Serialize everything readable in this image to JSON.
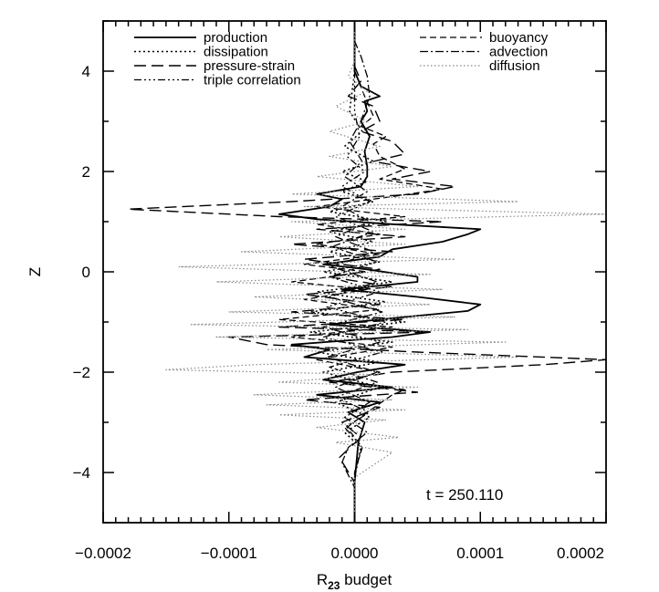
{
  "chart_data": {
    "type": "line",
    "xlabel_main": "R",
    "xlabel_sub": "23",
    "xlabel_rest": " budget",
    "ylabel": "Z",
    "xlim": [
      -0.0002,
      0.0002
    ],
    "ylim": [
      -5,
      5
    ],
    "x_ticks": [
      -0.0002,
      -0.0001,
      0.0,
      0.0001,
      0.0002
    ],
    "x_tick_labels": [
      "−0.0002",
      "−0.0001",
      "0.0000",
      "0.0001",
      "0.0002"
    ],
    "y_ticks": [
      -4,
      -2,
      0,
      2,
      4
    ],
    "y_tick_labels": [
      "−4",
      "−2",
      "0",
      "2",
      "4"
    ],
    "annotation": "t = 250.110",
    "grid": false,
    "legend_placement": "top",
    "series": [
      {
        "name": "production",
        "dash": "",
        "width": 1.8,
        "color": "#000000",
        "points": [
          [
            0,
            -5
          ],
          [
            0,
            -4.2
          ],
          [
            3e-06,
            -3.4
          ],
          [
            8e-06,
            -3.0
          ],
          [
            -5e-06,
            -2.8
          ],
          [
            2e-05,
            -2.6
          ],
          [
            -3e-05,
            -2.45
          ],
          [
            3e-05,
            -2.3
          ],
          [
            -2.5e-05,
            -2.15
          ],
          [
            2e-06,
            -2.0
          ],
          [
            4e-05,
            -1.85
          ],
          [
            -4e-05,
            -1.7
          ],
          [
            -2e-05,
            -1.55
          ],
          [
            -5e-05,
            -1.45
          ],
          [
            3e-05,
            -1.3
          ],
          [
            6e-05,
            -1.2
          ],
          [
            -2e-05,
            -1.05
          ],
          [
            4e-05,
            -0.9
          ],
          [
            9e-05,
            -0.78
          ],
          [
            0.0001,
            -0.65
          ],
          [
            5e-05,
            -0.5
          ],
          [
            -1e-05,
            -0.35
          ],
          [
            5e-05,
            -0.2
          ],
          [
            5e-05,
            -0.1
          ],
          [
            1e-05,
            0.05
          ],
          [
            -2.5e-05,
            0.15
          ],
          [
            2e-05,
            0.3
          ],
          [
            3e-05,
            0.45
          ],
          [
            7e-05,
            0.6
          ],
          [
            9e-05,
            0.75
          ],
          [
            0.0001,
            0.85
          ],
          [
            3e-05,
            0.95
          ],
          [
            -3e-05,
            1.05
          ],
          [
            -6e-05,
            1.15
          ],
          [
            -2e-05,
            1.3
          ],
          [
            -1e-05,
            1.45
          ],
          [
            -3e-05,
            1.55
          ],
          [
            5e-06,
            1.7
          ],
          [
            1e-05,
            1.9
          ],
          [
            1e-05,
            2.1
          ],
          [
            8e-06,
            2.4
          ],
          [
            1.2e-05,
            2.7
          ],
          [
            5e-06,
            3.0
          ],
          [
            1e-05,
            3.2
          ],
          [
            8e-06,
            3.4
          ],
          [
            2e-05,
            3.5
          ],
          [
            5e-06,
            3.7
          ],
          [
            0,
            4.0
          ],
          [
            0,
            5
          ]
        ]
      },
      {
        "name": "dissipation",
        "dash": "2,3",
        "width": 1.6,
        "color": "#000000",
        "points": [
          [
            0,
            -5
          ],
          [
            0,
            -4.1
          ],
          [
            5e-06,
            -3.5
          ],
          [
            -8e-06,
            -3.2
          ],
          [
            1.2e-05,
            -2.9
          ],
          [
            -1.5e-05,
            -2.6
          ],
          [
            2e-05,
            -2.3
          ],
          [
            -2.5e-05,
            -2.0
          ],
          [
            2e-05,
            -1.8
          ],
          [
            -3e-05,
            -1.6
          ],
          [
            3e-05,
            -1.4
          ],
          [
            -3.5e-05,
            -1.2
          ],
          [
            4e-05,
            -1.0
          ],
          [
            -3.5e-05,
            -0.8
          ],
          [
            2.5e-05,
            -0.6
          ],
          [
            -3e-05,
            -0.4
          ],
          [
            3e-05,
            -0.2
          ],
          [
            -2.5e-05,
            0.0
          ],
          [
            2e-05,
            0.2
          ],
          [
            -2e-05,
            0.4
          ],
          [
            1.5e-05,
            0.6
          ],
          [
            -2e-05,
            0.8
          ],
          [
            2.5e-05,
            1.0
          ],
          [
            -2e-05,
            1.2
          ],
          [
            1.5e-05,
            1.4
          ],
          [
            -1e-05,
            1.6
          ],
          [
            1e-05,
            1.8
          ],
          [
            -1e-05,
            2.0
          ],
          [
            1.5e-05,
            2.2
          ],
          [
            -8e-06,
            2.5
          ],
          [
            6e-06,
            2.8
          ],
          [
            -4e-06,
            3.2
          ],
          [
            0,
            4.0
          ],
          [
            0,
            5
          ]
        ]
      },
      {
        "name": "pressure-strain",
        "dash": "13,6",
        "width": 1.4,
        "color": "#000000",
        "points": [
          [
            0,
            -5
          ],
          [
            0,
            -4.2
          ],
          [
            -1.2e-05,
            -3.7
          ],
          [
            5e-06,
            -3.3
          ],
          [
            -1e-05,
            -3.0
          ],
          [
            2e-05,
            -2.7
          ],
          [
            -4e-05,
            -2.55
          ],
          [
            5e-05,
            -2.4
          ],
          [
            -2e-05,
            -2.2
          ],
          [
            3e-05,
            -2.0
          ],
          [
            0.00015,
            -1.85
          ],
          [
            0.0002,
            -1.75
          ],
          [
            5e-05,
            -1.6
          ],
          [
            -7e-05,
            -1.45
          ],
          [
            -0.0001,
            -1.3
          ],
          [
            6e-05,
            -1.2
          ],
          [
            -6e-05,
            -1.1
          ],
          [
            4e-05,
            -0.95
          ],
          [
            -5e-05,
            -0.8
          ],
          [
            2e-05,
            -0.65
          ],
          [
            -4e-05,
            -0.45
          ],
          [
            3e-05,
            -0.3
          ],
          [
            -2e-05,
            -0.1
          ],
          [
            2e-05,
            0.05
          ],
          [
            -4e-05,
            0.25
          ],
          [
            3e-05,
            0.4
          ],
          [
            -5e-05,
            0.55
          ],
          [
            4e-05,
            0.7
          ],
          [
            -3e-05,
            0.85
          ],
          [
            7e-05,
            1.0
          ],
          [
            -6e-05,
            1.1
          ],
          [
            -0.00018,
            1.25
          ],
          [
            -5e-05,
            1.4
          ],
          [
            5e-05,
            1.55
          ],
          [
            8e-05,
            1.7
          ],
          [
            3e-05,
            1.85
          ],
          [
            6e-05,
            2.0
          ],
          [
            1.5e-05,
            2.2
          ],
          [
            4e-05,
            2.35
          ],
          [
            3e-05,
            2.6
          ],
          [
            5e-06,
            2.8
          ],
          [
            2e-05,
            3.0
          ],
          [
            1.5e-05,
            3.3
          ],
          [
            -5e-06,
            3.5
          ],
          [
            5e-06,
            3.8
          ],
          [
            0,
            4.1
          ],
          [
            0,
            5
          ]
        ]
      },
      {
        "name": "triple correlation",
        "dash": "8,3,2,3,2,3,2,3",
        "width": 1.3,
        "color": "#000000",
        "points": [
          [
            0,
            -5
          ],
          [
            0,
            -4
          ],
          [
            6e-06,
            -3.5
          ],
          [
            -8e-06,
            -3.1
          ],
          [
            1.2e-05,
            -2.8
          ],
          [
            -1.5e-05,
            -2.5
          ],
          [
            1.8e-05,
            -2.2
          ],
          [
            -2e-05,
            -1.9
          ],
          [
            2.2e-05,
            -1.6
          ],
          [
            -2.5e-05,
            -1.3
          ],
          [
            2.5e-05,
            -1.0
          ],
          [
            -2.2e-05,
            -0.7
          ],
          [
            2e-05,
            -0.4
          ],
          [
            -2e-05,
            -0.1
          ],
          [
            1.8e-05,
            0.2
          ],
          [
            -1.8e-05,
            0.5
          ],
          [
            1.5e-05,
            0.8
          ],
          [
            -1.5e-05,
            1.1
          ],
          [
            1.2e-05,
            1.4
          ],
          [
            -1e-05,
            1.7
          ],
          [
            8e-06,
            2.0
          ],
          [
            -6e-06,
            2.3
          ],
          [
            4e-06,
            2.7
          ],
          [
            0,
            3.2
          ],
          [
            0,
            5
          ]
        ]
      },
      {
        "name": "buoyancy",
        "dash": "7,4",
        "width": 1.3,
        "color": "#000000",
        "points": [
          [
            0,
            -5
          ],
          [
            0,
            -4.0
          ],
          [
            6e-06,
            -3.5
          ],
          [
            -6e-06,
            -3.1
          ],
          [
            1e-05,
            -2.8
          ],
          [
            3e-05,
            -2.45
          ],
          [
            4e-05,
            -2.35
          ],
          [
            -1e-05,
            -2.2
          ],
          [
            2e-05,
            -2.0
          ],
          [
            -3e-05,
            -1.75
          ],
          [
            3e-05,
            -1.5
          ],
          [
            -5e-05,
            -1.3
          ],
          [
            3e-05,
            -1.1
          ],
          [
            -6e-05,
            -0.95
          ],
          [
            2e-05,
            -0.75
          ],
          [
            -4e-05,
            -0.55
          ],
          [
            1e-05,
            -0.35
          ],
          [
            -5e-05,
            -0.2
          ],
          [
            1e-05,
            0.0
          ],
          [
            -4e-05,
            0.15
          ],
          [
            2e-05,
            0.35
          ],
          [
            -3e-05,
            0.55
          ],
          [
            2e-05,
            0.75
          ],
          [
            -3e-05,
            0.95
          ],
          [
            4e-05,
            1.1
          ],
          [
            -3e-05,
            1.3
          ],
          [
            3e-05,
            1.5
          ],
          [
            7e-05,
            1.65
          ],
          [
            2e-05,
            1.85
          ],
          [
            4e-05,
            2.05
          ],
          [
            2e-05,
            2.3
          ],
          [
            1.5e-05,
            2.55
          ],
          [
            2.5e-05,
            2.7
          ],
          [
            5e-06,
            2.9
          ],
          [
            1.5e-05,
            3.1
          ],
          [
            8e-06,
            3.5
          ],
          [
            0,
            4.0
          ],
          [
            0,
            5
          ]
        ]
      },
      {
        "name": "advection",
        "dash": "9,3,2,3",
        "width": 1.3,
        "color": "#000000",
        "points": [
          [
            0,
            -5
          ],
          [
            0,
            -4.3
          ],
          [
            -1e-05,
            -3.8
          ],
          [
            -5e-06,
            -3.5
          ],
          [
            1e-05,
            -3.2
          ],
          [
            -8e-06,
            -2.9
          ],
          [
            1.2e-05,
            -2.6
          ],
          [
            -1.5e-05,
            -2.3
          ],
          [
            1.8e-05,
            -2.0
          ],
          [
            -2.2e-05,
            -1.7
          ],
          [
            2e-05,
            -1.4
          ],
          [
            -2.5e-05,
            -1.1
          ],
          [
            2.2e-05,
            -0.8
          ],
          [
            -2e-05,
            -0.5
          ],
          [
            1.8e-05,
            -0.2
          ],
          [
            -1.8e-05,
            0.1
          ],
          [
            1.5e-05,
            0.4
          ],
          [
            -1.5e-05,
            0.7
          ],
          [
            1.2e-05,
            1.0
          ],
          [
            -1e-05,
            1.3
          ],
          [
            1e-05,
            1.6
          ],
          [
            -8e-06,
            1.9
          ],
          [
            6e-06,
            2.2
          ],
          [
            -4e-06,
            2.6
          ],
          [
            5e-06,
            3.0
          ],
          [
            1.2e-05,
            3.5
          ],
          [
            1e-05,
            3.9
          ],
          [
            5e-06,
            4.3
          ],
          [
            0,
            4.6
          ],
          [
            0,
            5
          ]
        ]
      },
      {
        "name": "diffusion",
        "dash": "1.5,2.5",
        "width": 1.2,
        "color": "#888888",
        "points": [
          [
            0,
            -5
          ],
          [
            0,
            -4.1
          ],
          [
            3e-05,
            -3.6
          ],
          [
            -1.5e-05,
            -3.4
          ],
          [
            3.5e-05,
            -3.3
          ],
          [
            -3e-05,
            -3.1
          ],
          [
            2.5e-05,
            -2.95
          ],
          [
            -6e-05,
            -2.85
          ],
          [
            4e-05,
            -2.75
          ],
          [
            -7e-05,
            -2.65
          ],
          [
            3e-05,
            -2.55
          ],
          [
            -8e-05,
            -2.45
          ],
          [
            5e-05,
            -2.3
          ],
          [
            -6e-05,
            -2.2
          ],
          [
            2e-05,
            -2.05
          ],
          [
            -0.00015,
            -1.95
          ],
          [
            -8e-05,
            -1.85
          ],
          [
            0.00013,
            -1.7
          ],
          [
            -7e-05,
            -1.55
          ],
          [
            0.00012,
            -1.4
          ],
          [
            -0.00011,
            -1.3
          ],
          [
            9e-05,
            -1.15
          ],
          [
            -0.00013,
            -1.05
          ],
          [
            8e-05,
            -0.9
          ],
          [
            -0.0001,
            -0.8
          ],
          [
            6e-05,
            -0.65
          ],
          [
            -8e-05,
            -0.5
          ],
          [
            7e-05,
            -0.35
          ],
          [
            -0.00011,
            -0.2
          ],
          [
            6e-05,
            -0.05
          ],
          [
            -0.00014,
            0.1
          ],
          [
            8e-05,
            0.25
          ],
          [
            -9e-05,
            0.4
          ],
          [
            4e-05,
            0.55
          ],
          [
            -6e-05,
            0.7
          ],
          [
            4e-05,
            0.85
          ],
          [
            -5e-05,
            1.0
          ],
          [
            0.0002,
            1.15
          ],
          [
            -4e-05,
            1.3
          ],
          [
            0.00013,
            1.4
          ],
          [
            -5e-05,
            1.55
          ],
          [
            5e-05,
            1.7
          ],
          [
            -3e-05,
            1.9
          ],
          [
            3e-05,
            2.1
          ],
          [
            -2e-05,
            2.3
          ],
          [
            2e-05,
            2.5
          ],
          [
            -2e-05,
            2.8
          ],
          [
            1e-05,
            3.0
          ],
          [
            -1.5e-05,
            3.3
          ],
          [
            1e-05,
            3.6
          ],
          [
            -5e-06,
            3.9
          ],
          [
            0,
            4.2
          ],
          [
            0,
            5
          ]
        ]
      }
    ]
  }
}
